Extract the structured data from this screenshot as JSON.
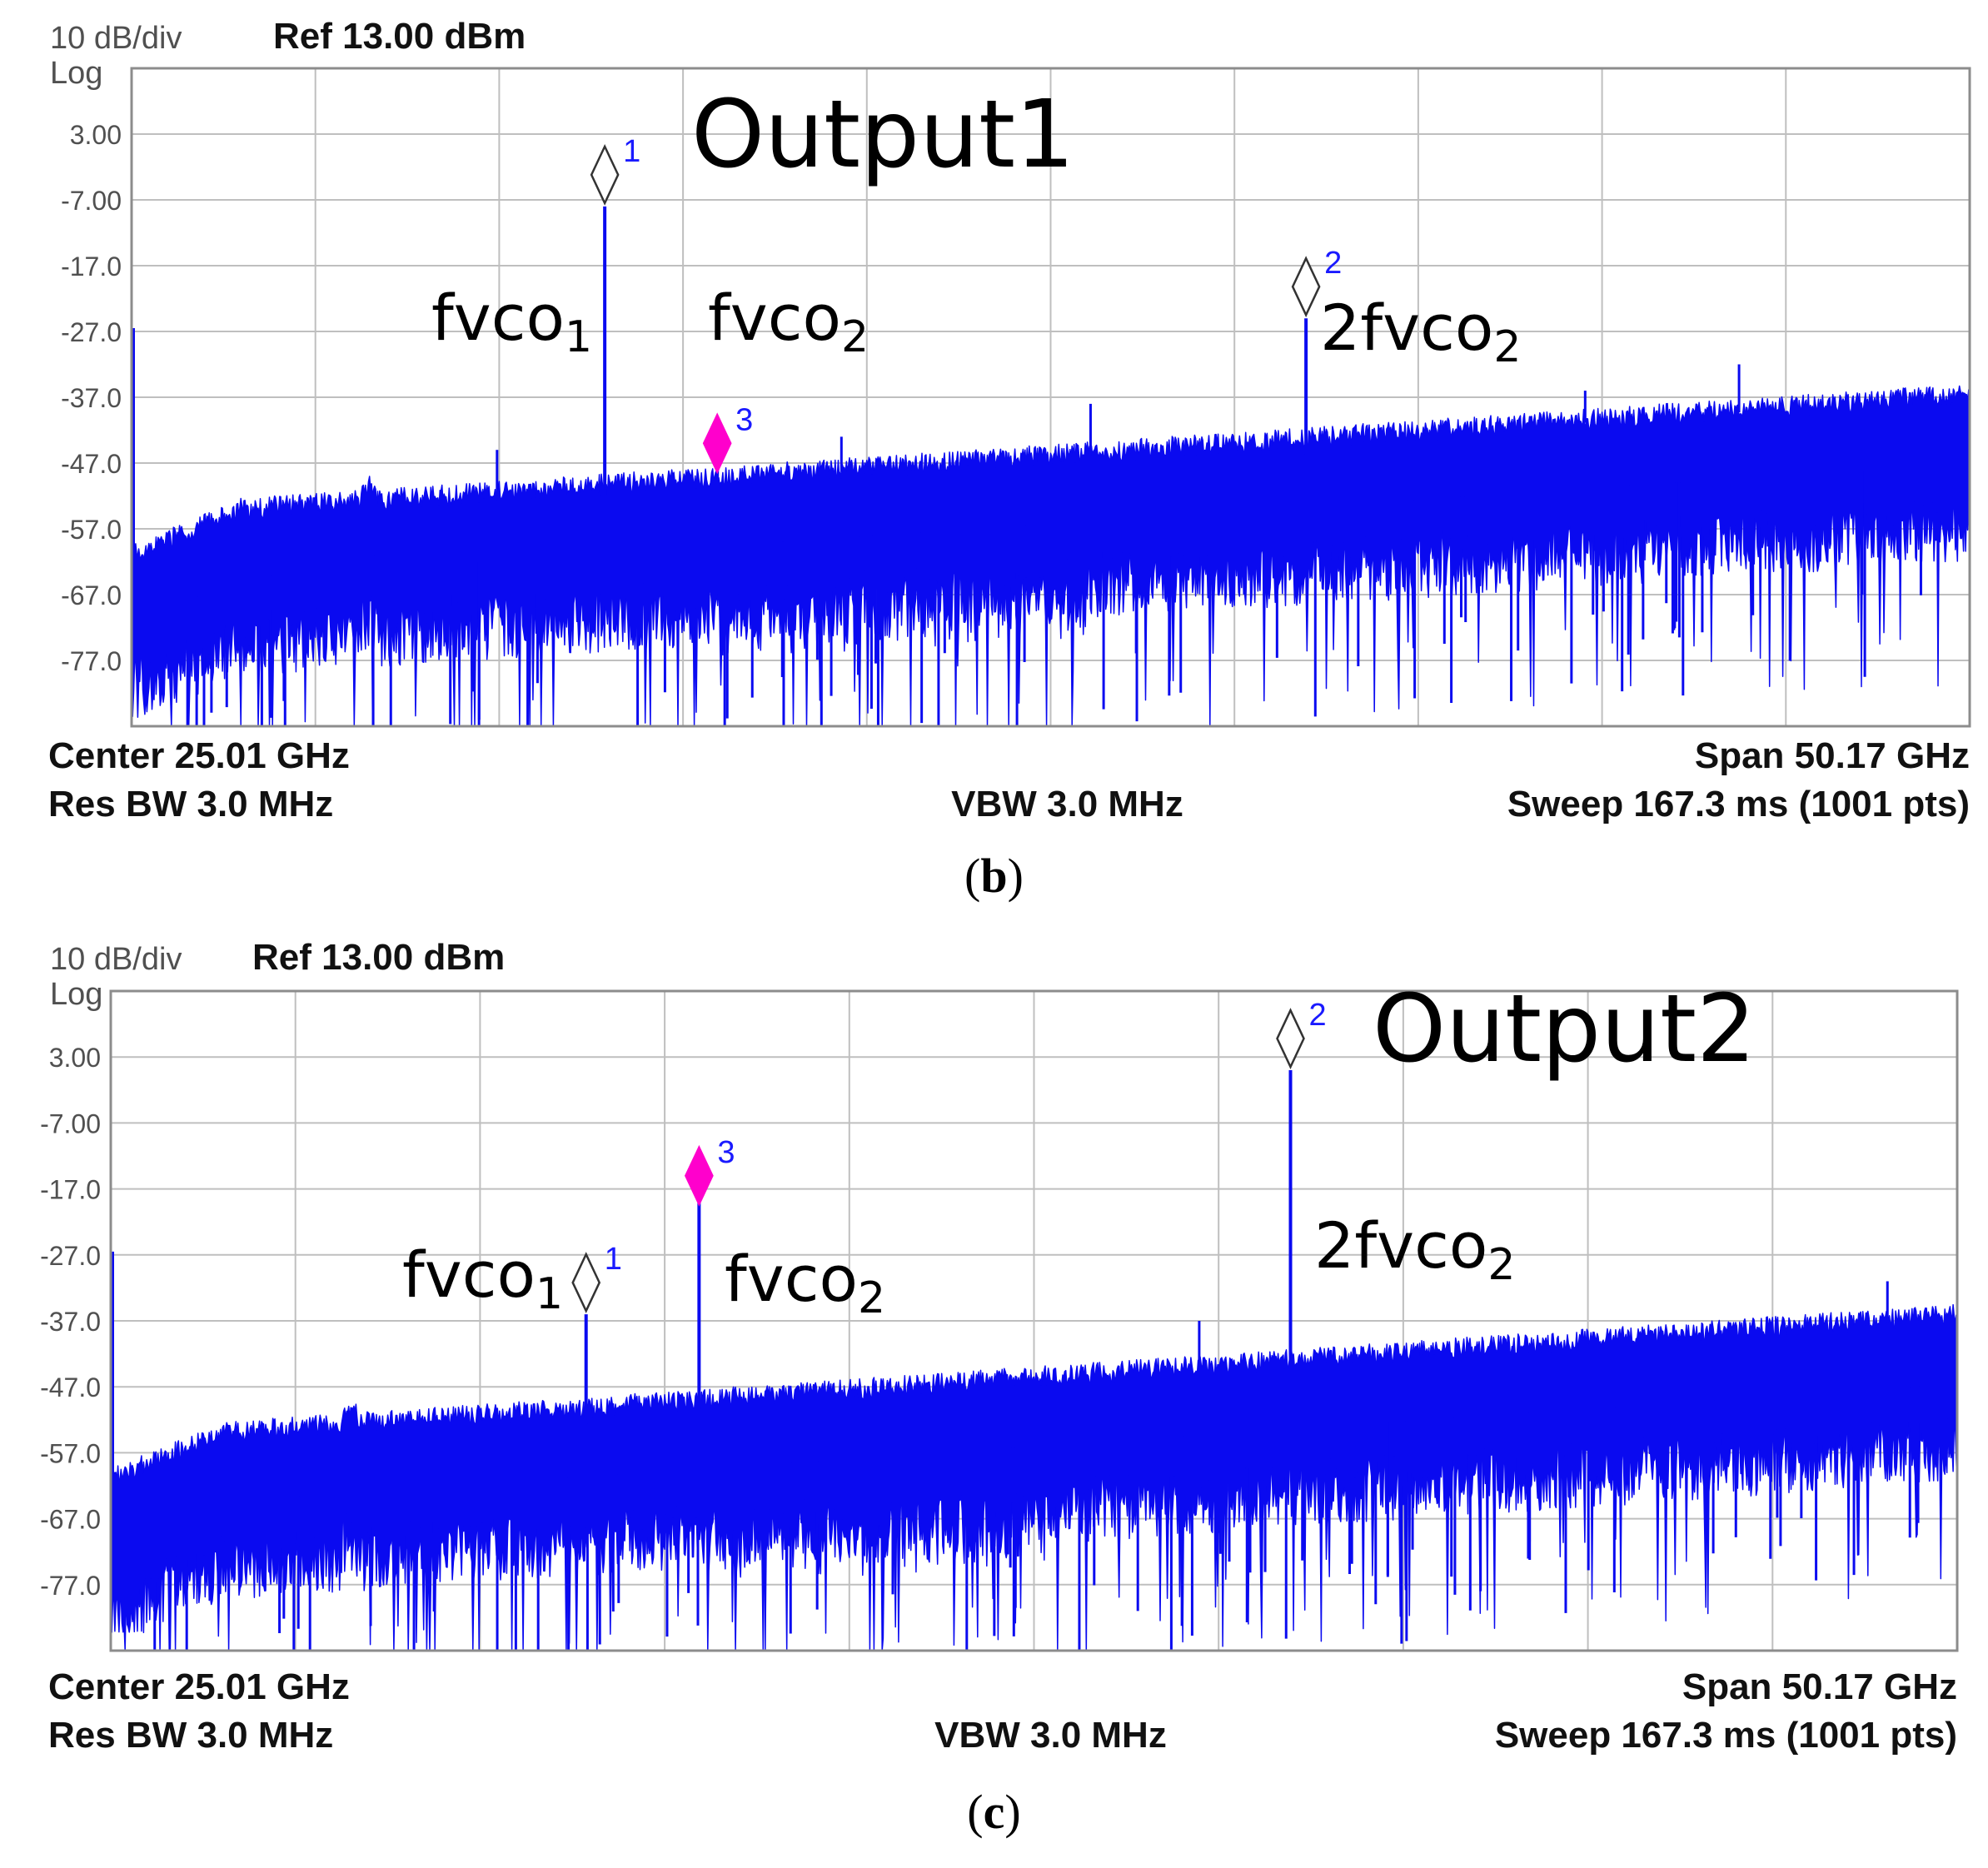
{
  "chart_data": [
    {
      "type": "line",
      "label": "b",
      "header": {
        "scale": "10 dB/div",
        "ref": "Ref 13.00 dBm",
        "mode": "Log"
      },
      "footer": {
        "center": "Center 25.01 GHz",
        "res_bw": "Res BW 3.0 MHz",
        "vbw": "VBW 3.0 MHz",
        "span": "Span 50.17 GHz",
        "sweep": "Sweep  167.3 ms (1001 pts)"
      },
      "y_ticks": [
        "3.00",
        "-7.00",
        "-17.0",
        "-27.0",
        "-37.0",
        "-47.0",
        "-57.0",
        "-67.0",
        "-77.0"
      ],
      "ylim": [
        -87,
        13
      ],
      "xlim": [
        -0.075,
        50.095
      ],
      "annotations": {
        "output": "Output1",
        "fvco1": {
          "text": "fvco",
          "sub": "1"
        },
        "fvco2": {
          "text": "fvco",
          "sub": "2"
        },
        "two_fvco2": {
          "text": "2fvco",
          "sub": "2"
        }
      },
      "markers": [
        {
          "id": "1",
          "x_ghz": 12.84,
          "level_dbm": -8.0,
          "style": "open"
        },
        {
          "id": "2",
          "x_ghz": 31.98,
          "level_dbm": -25.0,
          "style": "open"
        },
        {
          "id": "3",
          "x_ghz": 15.91,
          "level_dbm": -44.0,
          "style": "filled"
        }
      ],
      "noise_floor": {
        "start_dbm": -55.5,
        "end_dbm": -37.0
      },
      "spurs": [
        {
          "x_ghz": 9.9,
          "level_dbm": -45
        },
        {
          "x_ghz": 19.3,
          "level_dbm": -43
        },
        {
          "x_ghz": 26.1,
          "level_dbm": -38
        },
        {
          "x_ghz": 39.6,
          "level_dbm": -36
        },
        {
          "x_ghz": 43.8,
          "level_dbm": -32
        }
      ],
      "colors": {
        "trace": "#0a0af0",
        "marker_active": "#ff00cc",
        "grid": "#bfbfbf",
        "marker_label": "#1a1aff"
      }
    },
    {
      "type": "line",
      "label": "c",
      "header": {
        "scale": "10 dB/div",
        "ref": "Ref 13.00 dBm",
        "mode": "Log"
      },
      "footer": {
        "center": "Center 25.01 GHz",
        "res_bw": "Res BW 3.0 MHz",
        "vbw": "VBW 3.0 MHz",
        "span": "Span 50.17 GHz",
        "sweep": "Sweep  167.3 ms (1001 pts)"
      },
      "y_ticks": [
        "3.00",
        "-7.00",
        "-17.0",
        "-27.0",
        "-37.0",
        "-47.0",
        "-57.0",
        "-67.0",
        "-77.0"
      ],
      "ylim": [
        -87,
        13
      ],
      "xlim": [
        -0.075,
        50.095
      ],
      "annotations": {
        "output": "Output2",
        "fvco1": {
          "text": "fvco",
          "sub": "1"
        },
        "fvco2": {
          "text": "fvco",
          "sub": "2"
        },
        "two_fvco2": {
          "text": "2fvco",
          "sub": "2"
        }
      },
      "markers": [
        {
          "id": "1",
          "x_ghz": 12.84,
          "level_dbm": -36.0,
          "style": "open"
        },
        {
          "id": "2",
          "x_ghz": 31.98,
          "level_dbm": 1.0,
          "style": "open"
        },
        {
          "id": "3",
          "x_ghz": 15.91,
          "level_dbm": -15.0,
          "style": "filled"
        }
      ],
      "noise_floor": {
        "start_dbm": -55.5,
        "end_dbm": -36.5
      },
      "spurs": [
        {
          "x_ghz": 29.5,
          "level_dbm": -37
        },
        {
          "x_ghz": 48.2,
          "level_dbm": -31
        }
      ],
      "colors": {
        "trace": "#0a0af0",
        "marker_active": "#ff00cc",
        "grid": "#bfbfbf",
        "marker_label": "#1a1aff"
      }
    }
  ]
}
